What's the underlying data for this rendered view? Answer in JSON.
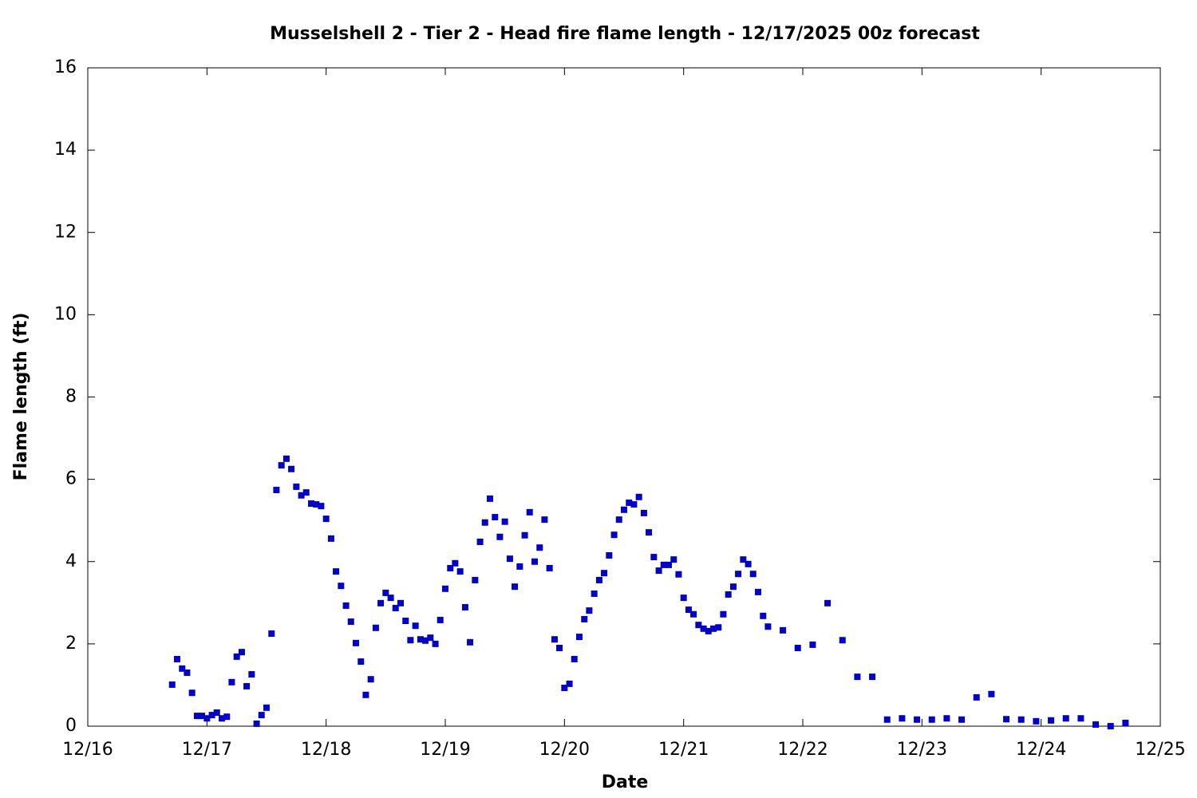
{
  "chart_data": {
    "type": "scatter",
    "title": "Musselshell 2 - Tier 2 - Head fire flame length - 12/17/2025 00z forecast",
    "x_label": "Date",
    "y_label": "Flame length (ft)",
    "color": "#0000cc",
    "xlim": [
      16,
      25
    ],
    "xticks": [
      {
        "value": 16,
        "label": "12/16"
      },
      {
        "value": 17,
        "label": "12/17"
      },
      {
        "value": 18,
        "label": "12/18"
      },
      {
        "value": 19,
        "label": "12/19"
      },
      {
        "value": 20,
        "label": "12/20"
      },
      {
        "value": 21,
        "label": "12/21"
      },
      {
        "value": 22,
        "label": "12/22"
      },
      {
        "value": 23,
        "label": "12/23"
      },
      {
        "value": 24,
        "label": "12/24"
      },
      {
        "value": 25,
        "label": "12/25"
      }
    ],
    "ylim": [
      0,
      16
    ],
    "yticks": [
      0,
      2,
      4,
      6,
      8,
      10,
      12,
      14,
      16
    ],
    "x": [
      16.708,
      16.75,
      16.792,
      16.833,
      16.875,
      16.917,
      16.958,
      17,
      17.042,
      17.083,
      17.125,
      17.167,
      17.208,
      17.25,
      17.292,
      17.333,
      17.375,
      17.417,
      17.458,
      17.5,
      17.542,
      17.583,
      17.625,
      17.667,
      17.708,
      17.75,
      17.792,
      17.833,
      17.875,
      17.917,
      17.958,
      18,
      18.042,
      18.083,
      18.125,
      18.167,
      18.208,
      18.25,
      18.292,
      18.333,
      18.375,
      18.417,
      18.458,
      18.5,
      18.542,
      18.583,
      18.625,
      18.667,
      18.708,
      18.75,
      18.792,
      18.833,
      18.875,
      18.917,
      18.958,
      19,
      19.042,
      19.083,
      19.125,
      19.167,
      19.208,
      19.25,
      19.292,
      19.333,
      19.375,
      19.417,
      19.458,
      19.5,
      19.542,
      19.583,
      19.625,
      19.667,
      19.708,
      19.75,
      19.792,
      19.833,
      19.875,
      19.917,
      19.958,
      20,
      20.042,
      20.083,
      20.125,
      20.167,
      20.208,
      20.25,
      20.292,
      20.333,
      20.375,
      20.417,
      20.458,
      20.5,
      20.542,
      20.583,
      20.625,
      20.667,
      20.708,
      20.75,
      20.792,
      20.833,
      20.875,
      20.917,
      20.958,
      21,
      21.042,
      21.083,
      21.125,
      21.167,
      21.208,
      21.25,
      21.292,
      21.333,
      21.375,
      21.417,
      21.458,
      21.5,
      21.542,
      21.583,
      21.625,
      21.667,
      21.708,
      21.833,
      21.958,
      22.083,
      22.208,
      22.333,
      22.458,
      22.583,
      22.708,
      22.833,
      22.958,
      23.083,
      23.208,
      23.333,
      23.458,
      23.583,
      23.708,
      23.833,
      23.958,
      24.083,
      24.208,
      24.333,
      24.458,
      24.583,
      24.708
    ],
    "values": [
      1.01,
      1.63,
      1.4,
      1.3,
      0.81,
      0.25,
      0.25,
      0.19,
      0.27,
      0.33,
      0.19,
      0.23,
      1.07,
      1.69,
      1.8,
      0.97,
      1.26,
      0.06,
      0.27,
      0.45,
      2.25,
      5.74,
      6.34,
      6.5,
      6.25,
      5.82,
      5.61,
      5.68,
      5.41,
      5.39,
      5.35,
      5.04,
      4.56,
      3.76,
      3.41,
      2.93,
      2.54,
      2.02,
      1.57,
      0.76,
      1.14,
      2.39,
      2.99,
      3.24,
      3.12,
      2.87,
      2.99,
      2.56,
      2.09,
      2.44,
      2.11,
      2.08,
      2.15,
      2.0,
      2.58,
      3.34,
      3.84,
      3.96,
      3.76,
      2.89,
      2.04,
      3.55,
      4.48,
      4.95,
      5.53,
      5.08,
      4.6,
      4.97,
      4.07,
      3.39,
      3.88,
      4.64,
      5.2,
      4.0,
      4.34,
      5.02,
      3.84,
      2.11,
      1.9,
      0.93,
      1.03,
      1.63,
      2.17,
      2.6,
      2.81,
      3.22,
      3.55,
      3.72,
      4.15,
      4.65,
      5.02,
      5.26,
      5.43,
      5.39,
      5.57,
      5.18,
      4.71,
      4.11,
      3.78,
      3.92,
      3.92,
      4.05,
      3.69,
      3.12,
      2.83,
      2.72,
      2.46,
      2.37,
      2.31,
      2.37,
      2.4,
      2.72,
      3.2,
      3.39,
      3.7,
      4.05,
      3.94,
      3.7,
      3.26,
      2.68,
      2.42,
      2.33,
      1.9,
      1.98,
      2.99,
      2.09,
      1.2,
      1.2,
      0.16,
      0.19,
      0.16,
      0.16,
      0.19,
      0.16,
      0.7,
      0.78,
      0.17,
      0.16,
      0.12,
      0.14,
      0.19,
      0.19,
      0.04,
      0.0,
      0.08
    ]
  }
}
